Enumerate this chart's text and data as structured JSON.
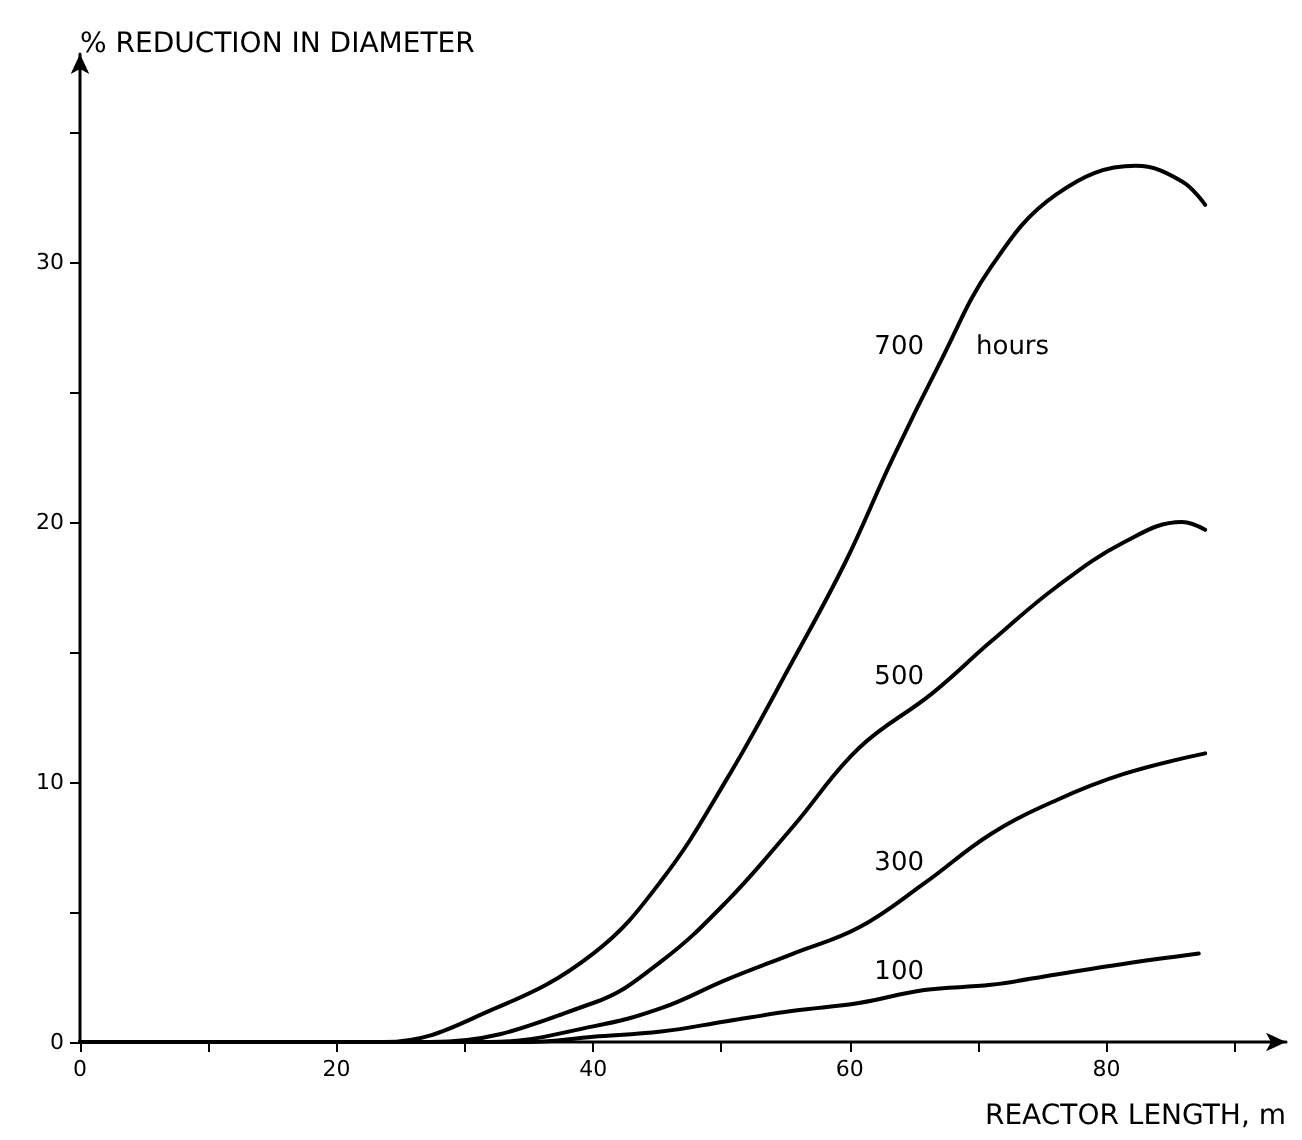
{
  "chart_data": {
    "type": "line",
    "xlabel": "REACTOR LENGTH, m",
    "ylabel": "% REDUCTION IN DIAMETER",
    "xlim": [
      0,
      94
    ],
    "xticks": [
      0,
      {
        "value": 10,
        "label": null
      },
      20,
      {
        "value": 30,
        "label": null
      },
      40,
      {
        "value": 50,
        "label": null
      },
      60,
      {
        "value": 70,
        "label": null
      },
      80,
      {
        "value": 90,
        "label": null
      }
    ],
    "ylim": [
      0,
      38
    ],
    "yticks": [
      0,
      {
        "value": 5,
        "label": null
      },
      10,
      {
        "value": 15,
        "label": null
      },
      20,
      {
        "value": 25,
        "label": null
      },
      30,
      {
        "value": 35,
        "label": null
      }
    ],
    "x": [
      0,
      23.7,
      32.4,
      40,
      45.3,
      50.4,
      55.6,
      59.7,
      63.3,
      67.1,
      71,
      76.1,
      82.3,
      85.9,
      87.7
    ],
    "series": [
      {
        "name": "700",
        "color": "#000000",
        "values": [
          0,
          0,
          1.3,
          3.4,
          6.2,
          10.1,
          14.7,
          18.5,
          22.4,
          26.2,
          29.8,
          32.6,
          33.7,
          33.1,
          32.2
        ]
      },
      {
        "name": "500",
        "color": "#000000",
        "x": [
          0,
          27.3,
          40,
          45.3,
          50.4,
          55.6,
          60.7,
          66.4,
          71,
          76.1,
          81.3,
          85.9,
          87.7
        ],
        "values": [
          0,
          0,
          1.5,
          3.1,
          5.4,
          8.3,
          11.3,
          13.4,
          15.4,
          17.5,
          19.2,
          20,
          19.7
        ]
      },
      {
        "name": "300",
        "color": "#000000",
        "x": [
          0,
          31.9,
          40,
          45.3,
          50.4,
          55.6,
          60.7,
          65.8,
          71,
          76.1,
          81.3,
          87.7
        ],
        "values": [
          0,
          0,
          0.6,
          1.3,
          2.4,
          3.4,
          4.4,
          6.1,
          8,
          9.3,
          10.3,
          11.1
        ]
      },
      {
        "name": "100",
        "color": "#000000",
        "x": [
          0,
          35,
          40,
          45.3,
          50.4,
          55.6,
          60.7,
          65.8,
          71,
          76.1,
          81.3,
          87.2
        ],
        "values": [
          0,
          0,
          0.2,
          0.4,
          0.8,
          1.2,
          1.5,
          2,
          2.2,
          2.6,
          3,
          3.4
        ]
      }
    ],
    "annotations": [
      "hours"
    ],
    "grid": false,
    "legend": false,
    "marker": "none",
    "line_style": "solid"
  }
}
